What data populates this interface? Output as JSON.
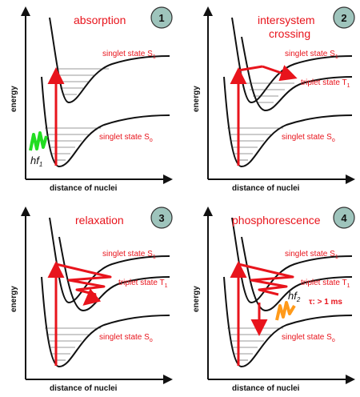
{
  "panels": [
    {
      "number": "1",
      "title": [
        "absorption"
      ],
      "singlet1": "singlet state S",
      "singlet1_sub": "1",
      "singlet0": "singlet state S",
      "singlet0_sub": "o",
      "ylabel": "energy",
      "xlabel": "distance of nuclei",
      "hf": "hf",
      "hf_sub": "1"
    },
    {
      "number": "2",
      "title": [
        "intersystem",
        "crossing"
      ],
      "singlet1": "singlet state S",
      "singlet1_sub": "1",
      "triplet": "triplet state T",
      "triplet_sub": "1",
      "singlet0": "singlet state S",
      "singlet0_sub": "o",
      "ylabel": "energy",
      "xlabel": "distance of nuclei"
    },
    {
      "number": "3",
      "title": [
        "relaxation"
      ],
      "singlet1": "singlet state S",
      "singlet1_sub": "1",
      "triplet": "triplet state T",
      "triplet_sub": "1",
      "singlet0": "singlet state S",
      "singlet0_sub": "o",
      "ylabel": "energy",
      "xlabel": "distance of nuclei"
    },
    {
      "number": "4",
      "title": [
        "phosphorescence"
      ],
      "singlet1": "singlet state S",
      "singlet1_sub": "1",
      "triplet": "triplet state T",
      "triplet_sub": "1",
      "singlet0": "singlet state S",
      "singlet0_sub": "o",
      "ylabel": "energy",
      "xlabel": "distance of nuclei",
      "hf": "hf",
      "hf_sub": "2",
      "tau": "τ: > 1 ms"
    }
  ],
  "colors": {
    "accent": "#e8141c",
    "curve": "#111111",
    "badge": "#9ec4bc",
    "wave_absorb": "#22dd22",
    "wave_emit": "#ff9a1a"
  }
}
